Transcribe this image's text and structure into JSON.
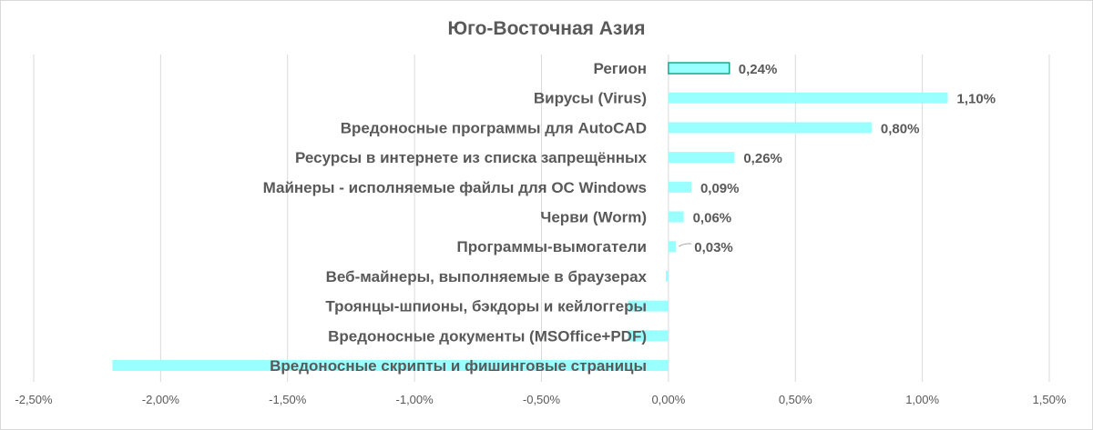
{
  "chart_data": {
    "type": "bar",
    "orientation": "horizontal",
    "title": "Юго-Восточная Азия",
    "categories": [
      "Регион",
      "Вирусы (Virus)",
      "Вредоносные программы для AutoCAD",
      "Ресурсы в интернете из списка запрещённых",
      "Майнеры - исполняемые файлы для ОС Windows",
      "Черви (Worm)",
      "Программы-вымогатели",
      "Веб-майнеры, выполняемые в браузерах",
      "Троянцы-шпионы, бэкдоры и кейлоггеры",
      "Вредоносные документы (MSOffice+PDF)",
      "Вредоносные скрипты и фишинговые страницы"
    ],
    "values": [
      0.24,
      1.1,
      0.8,
      0.26,
      0.09,
      0.06,
      0.03,
      -0.01,
      -0.16,
      -0.16,
      -2.19
    ],
    "data_labels": [
      "0,24%",
      "1,10%",
      "0,80%",
      "0,26%",
      "0,09%",
      "0,06%",
      "0,03%",
      "",
      "",
      "",
      ""
    ],
    "xlim": [
      -2.5,
      1.5
    ],
    "xticks": [
      -2.5,
      -2.0,
      -1.5,
      -1.0,
      -0.5,
      0,
      0.5,
      1.0,
      1.5
    ],
    "xtick_labels": [
      "-2,50%",
      "-2,00%",
      "-1,50%",
      "-1,00%",
      "-0,50%",
      "0,00%",
      "0,50%",
      "1,00%",
      "1,50%"
    ],
    "grid": true,
    "colors": {
      "bar": "#99ffff",
      "highlight_border": "#1aa88a",
      "text": "#595959",
      "grid": "#d9d9d9"
    }
  }
}
